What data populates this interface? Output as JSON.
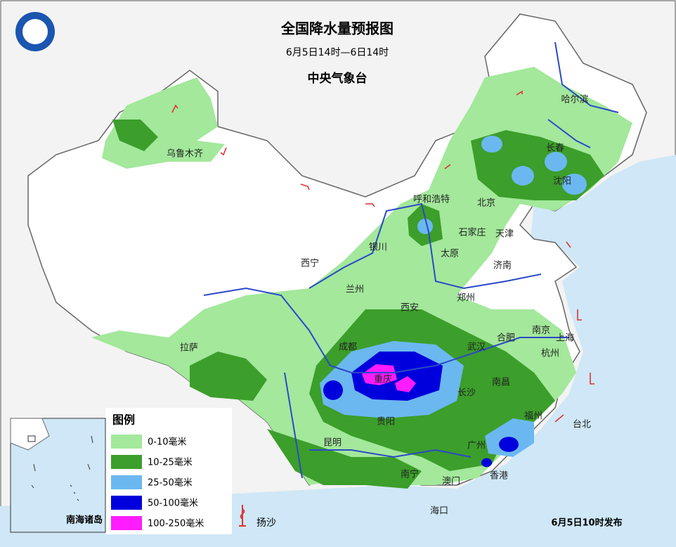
{
  "header": {
    "title": "全国降水量预报图",
    "subtitle": "6月5日14时—6日14时",
    "issuer": "中央气象台"
  },
  "cities": [
    {
      "label": "哈尔滨"
    },
    {
      "label": "长春"
    },
    {
      "label": "沈阳"
    },
    {
      "label": "乌鲁木齐"
    },
    {
      "label": "呼和浩特"
    },
    {
      "label": "北京"
    },
    {
      "label": "石家庄"
    },
    {
      "label": "天津"
    },
    {
      "label": "银川"
    },
    {
      "label": "太原"
    },
    {
      "label": "西宁"
    },
    {
      "label": "济南"
    },
    {
      "label": "兰州"
    },
    {
      "label": "郑州"
    },
    {
      "label": "西安"
    },
    {
      "label": "南京"
    },
    {
      "label": "上海"
    },
    {
      "label": "合肥"
    },
    {
      "label": "成都"
    },
    {
      "label": "武汉"
    },
    {
      "label": "杭州"
    },
    {
      "label": "拉萨"
    },
    {
      "label": "重庆"
    },
    {
      "label": "长沙"
    },
    {
      "label": "南昌"
    },
    {
      "label": "贵阳"
    },
    {
      "label": "福州"
    },
    {
      "label": "台北"
    },
    {
      "label": "昆明"
    },
    {
      "label": "广州"
    },
    {
      "label": "南宁"
    },
    {
      "label": "澳门"
    },
    {
      "label": "香港"
    },
    {
      "label": "海口"
    }
  ],
  "legend": {
    "title": "图例",
    "items": [
      {
        "label": "0-10毫米",
        "color": "#a3e89b"
      },
      {
        "label": "10-25毫米",
        "color": "#3c9e2b"
      },
      {
        "label": "25-50毫米",
        "color": "#6bb8f0"
      },
      {
        "label": "50-100毫米",
        "color": "#0000dc"
      },
      {
        "label": "100-250毫米",
        "color": "#ff1cff"
      }
    ],
    "sand": "扬沙"
  },
  "inset": {
    "label": "南海诸岛"
  },
  "footer": "6月5日10时发布"
}
